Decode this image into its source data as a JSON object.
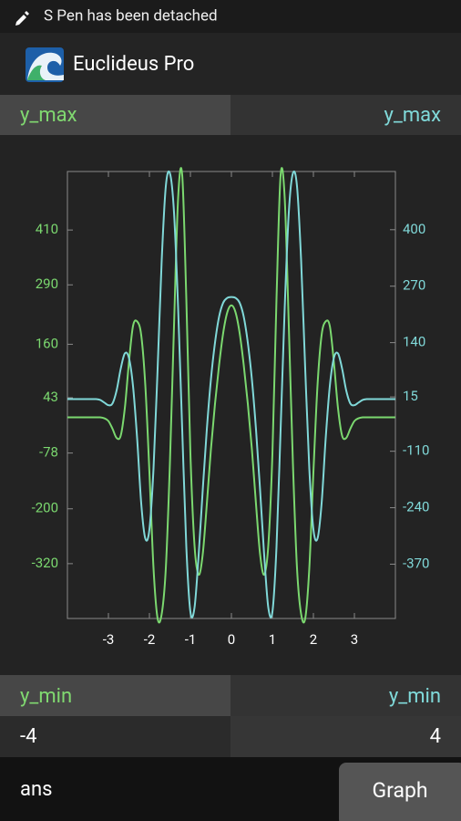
{
  "status_bar": {
    "text": "S Pen has been detached"
  },
  "app_bar": {
    "title": "Euclideus Pro"
  },
  "y_max_labels": [
    "y_max",
    "y_max"
  ],
  "chart_data": {
    "type": "line",
    "x": [
      -4,
      -3.9,
      -3.8,
      -3.7,
      -3.6,
      -3.5,
      -3.4,
      -3.3,
      -3.2,
      -3.1,
      -3,
      -2.9,
      -2.8,
      -2.7,
      -2.6,
      -2.5,
      -2.4,
      -2.3,
      -2.2,
      -2.1,
      -2,
      -1.9,
      -1.8,
      -1.7,
      -1.6,
      -1.5,
      -1.4,
      -1.3,
      -1.2,
      -1.1,
      -1,
      -0.9,
      -0.8,
      -0.7,
      -0.6,
      -0.5,
      -0.4,
      -0.3,
      -0.2,
      -0.1,
      0,
      0.1,
      0.2,
      0.3,
      0.4,
      0.5,
      0.6,
      0.7,
      0.8,
      0.9,
      1,
      1.1,
      1.2,
      1.3,
      1.4,
      1.5,
      1.6,
      1.7,
      1.8,
      1.9,
      2,
      2.1,
      2.2,
      2.3,
      2.4,
      2.5,
      2.6,
      2.7,
      2.8,
      2.9,
      3,
      3.1,
      3.2,
      3.3,
      3.4,
      3.5,
      3.6,
      3.7,
      3.8,
      3.9,
      4
    ],
    "series": [
      {
        "color": "#7bd86f",
        "axis": "y",
        "values": [
          0,
          0,
          0,
          0,
          0,
          0,
          0,
          0,
          0,
          -2,
          -8,
          -25,
          -45,
          -40,
          20,
          120,
          200,
          210,
          180,
          70,
          -120,
          -330,
          -440,
          -430,
          -330,
          -100,
          200,
          480,
          530,
          260,
          -80,
          -280,
          -344,
          -300,
          -190,
          -70,
          30,
          115,
          185,
          230,
          245,
          230,
          185,
          115,
          30,
          -70,
          -190,
          -300,
          -344,
          -280,
          -80,
          260,
          530,
          480,
          200,
          -100,
          -330,
          -430,
          -440,
          -330,
          -120,
          70,
          180,
          210,
          200,
          120,
          20,
          -40,
          -45,
          -25,
          -8,
          -2,
          0,
          0,
          0,
          0,
          0,
          0,
          0,
          0,
          0
        ]
      },
      {
        "color": "#80d8d8",
        "axis": "y2",
        "values": [
          10,
          10,
          10,
          10,
          10,
          10,
          10,
          10,
          8,
          2,
          -4,
          0,
          30,
          80,
          115,
          105,
          40,
          -80,
          -230,
          -311,
          -290,
          -150,
          80,
          330,
          500,
          530,
          440,
          220,
          -60,
          -330,
          -480,
          -470,
          -350,
          -200,
          -60,
          55,
          140,
          200,
          232,
          243,
          245,
          243,
          232,
          200,
          140,
          55,
          -60,
          -200,
          -350,
          -470,
          -480,
          -330,
          -60,
          220,
          440,
          530,
          500,
          330,
          80,
          -150,
          -290,
          -311,
          -230,
          -80,
          40,
          105,
          115,
          80,
          30,
          0,
          -4,
          2,
          8,
          10,
          10,
          10,
          10,
          10,
          10,
          10,
          10
        ]
      }
    ],
    "xlim": [
      -4,
      4
    ],
    "xticks": [
      -3,
      -2,
      -1,
      0,
      1,
      2,
      3
    ],
    "ylim": [
      -440,
      538
    ],
    "yticks": [
      410,
      290,
      160,
      43,
      -78,
      -200,
      -320
    ],
    "y2lim": [
      -495,
      534
    ],
    "y2ticks": [
      400,
      270,
      140,
      15,
      -110,
      -240,
      -370
    ]
  },
  "y_min_labels": [
    "y_min",
    "y_min"
  ],
  "range_values": [
    -4,
    4
  ],
  "input": {
    "text": "ans"
  },
  "button": {
    "label": "Graph"
  }
}
